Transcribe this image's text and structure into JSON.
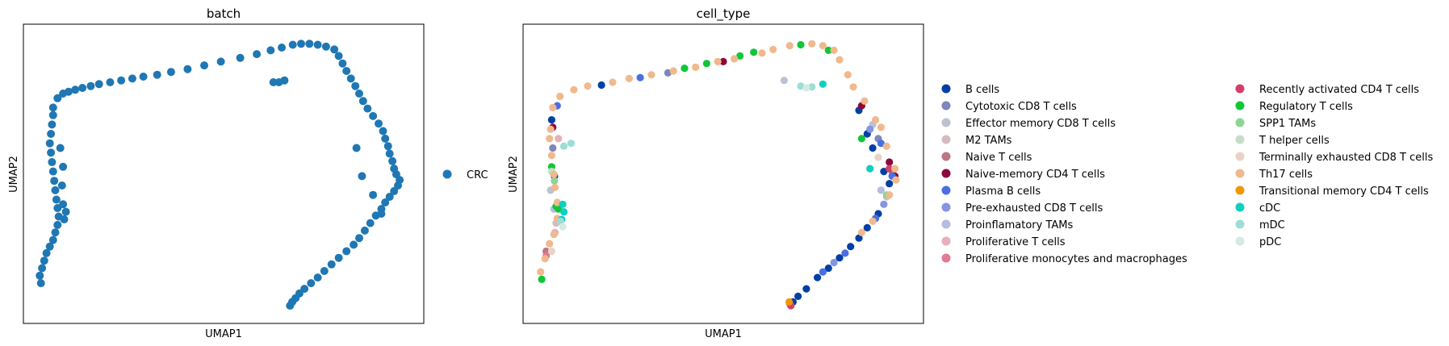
{
  "chart_data": [
    {
      "type": "scatter",
      "title": "batch",
      "xlabel": "UMAP1",
      "ylabel": "UMAP2",
      "grid": false,
      "ticks": false,
      "legend_position": "right",
      "series": [
        {
          "name": "CRC",
          "color": "#1f77b4",
          "points": [
            [
              0.42,
              1.63
            ],
            [
              0.5,
              1.73
            ],
            [
              0.6,
              1.78
            ],
            [
              0.7,
              1.8
            ],
            [
              0.82,
              1.82
            ],
            [
              0.95,
              1.84
            ],
            [
              1.1,
              1.86
            ],
            [
              1.25,
              1.88
            ],
            [
              1.45,
              1.9
            ],
            [
              1.65,
              1.92
            ],
            [
              1.85,
              1.94
            ],
            [
              2.05,
              1.96
            ],
            [
              2.3,
              1.98
            ],
            [
              2.55,
              2.01
            ],
            [
              2.85,
              2.04
            ],
            [
              3.15,
              2.08
            ],
            [
              3.45,
              2.12
            ],
            [
              3.8,
              2.16
            ],
            [
              4.1,
              2.2
            ],
            [
              4.35,
              2.24
            ],
            [
              4.55,
              2.27
            ],
            [
              4.75,
              2.3
            ],
            [
              4.9,
              2.31
            ],
            [
              5.05,
              2.31
            ],
            [
              5.2,
              2.3
            ],
            [
              5.35,
              2.28
            ],
            [
              5.5,
              2.25
            ],
            [
              5.58,
              2.18
            ],
            [
              5.65,
              2.1
            ],
            [
              5.72,
              2.02
            ],
            [
              5.8,
              1.94
            ],
            [
              5.88,
              1.86
            ],
            [
              5.95,
              1.78
            ],
            [
              6.02,
              1.7
            ],
            [
              6.1,
              1.62
            ],
            [
              6.2,
              1.54
            ],
            [
              6.3,
              1.46
            ],
            [
              6.38,
              1.38
            ],
            [
              6.42,
              1.3
            ],
            [
              6.47,
              1.22
            ],
            [
              6.5,
              1.14
            ],
            [
              6.55,
              1.06
            ],
            [
              6.58,
              0.98
            ],
            [
              6.62,
              0.92
            ],
            [
              6.68,
              0.86
            ],
            [
              6.65,
              0.8
            ],
            [
              6.58,
              0.74
            ],
            [
              6.5,
              0.68
            ],
            [
              6.42,
              0.62
            ],
            [
              6.35,
              0.55
            ],
            [
              6.25,
              0.48
            ],
            [
              6.15,
              0.4
            ],
            [
              6.05,
              0.32
            ],
            [
              5.95,
              0.24
            ],
            [
              5.85,
              0.17
            ],
            [
              5.72,
              0.1
            ],
            [
              5.58,
              0.03
            ],
            [
              5.45,
              -0.04
            ],
            [
              5.32,
              -0.11
            ],
            [
              5.2,
              -0.18
            ],
            [
              5.08,
              -0.24
            ],
            [
              4.96,
              -0.3
            ],
            [
              4.87,
              -0.35
            ],
            [
              4.8,
              -0.4
            ],
            [
              4.74,
              -0.44
            ],
            [
              4.7,
              -0.48
            ],
            [
              0.42,
              1.55
            ],
            [
              0.4,
              1.45
            ],
            [
              0.38,
              1.35
            ],
            [
              0.36,
              1.25
            ],
            [
              0.38,
              1.15
            ],
            [
              0.4,
              1.05
            ],
            [
              0.42,
              0.95
            ],
            [
              0.44,
              0.85
            ],
            [
              0.46,
              0.75
            ],
            [
              0.48,
              0.65
            ],
            [
              0.5,
              0.56
            ],
            [
              0.52,
              0.47
            ],
            [
              0.5,
              0.38
            ],
            [
              0.46,
              0.3
            ],
            [
              0.42,
              0.22
            ],
            [
              0.36,
              0.15
            ],
            [
              0.3,
              0.08
            ],
            [
              0.26,
              0.0
            ],
            [
              0.22,
              -0.08
            ],
            [
              0.18,
              -0.16
            ],
            [
              0.2,
              -0.24
            ],
            [
              0.6,
              0.6
            ],
            [
              0.65,
              0.52
            ],
            [
              0.62,
              0.44
            ],
            [
              0.55,
              1.2
            ],
            [
              0.6,
              1.0
            ],
            [
              0.58,
              0.8
            ],
            [
              4.4,
              1.9
            ],
            [
              4.6,
              1.92
            ],
            [
              4.5,
              1.9
            ],
            [
              5.9,
              1.2
            ],
            [
              6.0,
              0.9
            ],
            [
              6.2,
              0.7
            ],
            [
              6.35,
              0.5
            ]
          ]
        }
      ]
    },
    {
      "type": "scatter",
      "title": "cell_type",
      "xlabel": "UMAP1",
      "ylabel": "UMAP2",
      "grid": false,
      "ticks": false,
      "legend_position": "right, two columns",
      "series": [
        {
          "name": "B cells",
          "color": "#023fa5",
          "points": [
            [
              5.95,
              1.6
            ],
            [
              6.1,
              1.35
            ],
            [
              6.2,
              1.2
            ],
            [
              6.4,
              0.95
            ],
            [
              6.5,
              0.82
            ],
            [
              6.3,
              0.5
            ],
            [
              6.1,
              0.35
            ],
            [
              5.95,
              0.24
            ],
            [
              5.8,
              0.15
            ],
            [
              5.6,
              0.03
            ],
            [
              5.4,
              -0.08
            ],
            [
              5.2,
              -0.18
            ],
            [
              5.0,
              -0.3
            ],
            [
              4.85,
              -0.38
            ],
            [
              4.76,
              -0.44
            ],
            [
              0.4,
              1.5
            ],
            [
              0.45,
              0.9
            ],
            [
              1.3,
              1.87
            ]
          ]
        },
        {
          "name": "Cytotoxic CD8 T cells",
          "color": "#7d87b9",
          "points": [
            [
              0.42,
              1.2
            ],
            [
              6.3,
              1.3
            ],
            [
              2.5,
              2.0
            ]
          ]
        },
        {
          "name": "Effector memory CD8 T cells",
          "color": "#bec1d4",
          "points": [
            [
              0.38,
              0.75
            ],
            [
              6.2,
              1.45
            ],
            [
              4.6,
              1.92
            ]
          ]
        },
        {
          "name": "M2 TAMs",
          "color": "#d6bcc0",
          "points": [
            [
              0.48,
              0.4
            ],
            [
              6.45,
              0.68
            ]
          ]
        },
        {
          "name": "Naive T cells",
          "color": "#bb7784",
          "points": [
            [
              6.55,
              0.95
            ],
            [
              0.3,
              0.1
            ]
          ]
        },
        {
          "name": "Naive-memory CD4 T cells",
          "color": "#8e063b",
          "points": [
            [
              6.0,
              1.65
            ],
            [
              6.5,
              1.05
            ],
            [
              6.6,
              0.9
            ],
            [
              0.42,
              1.42
            ],
            [
              3.5,
              2.12
            ]
          ]
        },
        {
          "name": "Plasma B cells",
          "color": "#4a6fe3",
          "points": [
            [
              6.35,
              1.25
            ],
            [
              6.55,
              0.9
            ],
            [
              6.25,
              0.45
            ],
            [
              5.7,
              0.08
            ],
            [
              5.3,
              -0.12
            ],
            [
              0.5,
              1.65
            ],
            [
              2.0,
              1.95
            ]
          ]
        },
        {
          "name": "Pre-exhausted CD8 T cells",
          "color": "#8595e1",
          "points": [
            [
              6.15,
              1.4
            ],
            [
              6.4,
              0.6
            ],
            [
              5.5,
              -0.02
            ]
          ]
        },
        {
          "name": "Proinflamatory TAMs",
          "color": "#b5bbe3",
          "points": [
            [
              6.35,
              0.75
            ],
            [
              0.44,
              0.55
            ]
          ]
        },
        {
          "name": "Proliferative T cells",
          "color": "#e6afb9",
          "points": [
            [
              0.46,
              0.3
            ],
            [
              0.52,
              1.3
            ]
          ]
        },
        {
          "name": "Proliferative monocytes and macrophages",
          "color": "#e07b91",
          "points": [
            [
              4.7,
              -0.46
            ],
            [
              0.3,
              0.05
            ]
          ]
        },
        {
          "name": "Recently activated CD4 T cells",
          "color": "#d33f6a",
          "points": [
            [
              6.5,
              0.98
            ],
            [
              4.72,
              -0.48
            ]
          ]
        },
        {
          "name": "Regulatory T cells",
          "color": "#11c638",
          "points": [
            [
              0.48,
              0.58
            ],
            [
              0.52,
              0.55
            ],
            [
              0.4,
              1.0
            ],
            [
              3.2,
              2.1
            ],
            [
              3.8,
              2.18
            ],
            [
              4.05,
              2.22
            ],
            [
              4.9,
              2.3
            ],
            [
              5.4,
              2.24
            ],
            [
              6.0,
              1.3
            ],
            [
              0.22,
              -0.2
            ],
            [
              2.8,
              2.05
            ]
          ]
        },
        {
          "name": "SPP1 TAMs",
          "color": "#8dd593",
          "points": [
            [
              0.45,
              0.85
            ],
            [
              6.45,
              0.7
            ]
          ]
        },
        {
          "name": "T helper cells",
          "color": "#c6dec7",
          "points": [
            [
              0.4,
              0.95
            ]
          ]
        },
        {
          "name": "Terminally exhausted CD8 T cells",
          "color": "#ead3c6",
          "points": [
            [
              0.4,
              0.1
            ],
            [
              6.3,
              1.1
            ]
          ]
        },
        {
          "name": "Th17 cells",
          "color": "#f0b98d",
          "points": [
            [
              0.42,
              1.63
            ],
            [
              0.55,
              1.75
            ],
            [
              0.8,
              1.82
            ],
            [
              1.05,
              1.86
            ],
            [
              1.5,
              1.9
            ],
            [
              1.8,
              1.94
            ],
            [
              2.2,
              1.98
            ],
            [
              2.6,
              2.02
            ],
            [
              3.0,
              2.06
            ],
            [
              3.4,
              2.12
            ],
            [
              3.7,
              2.15
            ],
            [
              4.2,
              2.21
            ],
            [
              4.4,
              2.25
            ],
            [
              4.7,
              2.29
            ],
            [
              5.1,
              2.31
            ],
            [
              5.3,
              2.29
            ],
            [
              5.5,
              2.24
            ],
            [
              5.6,
              2.14
            ],
            [
              5.75,
              1.98
            ],
            [
              5.85,
              1.85
            ],
            [
              6.05,
              1.7
            ],
            [
              6.25,
              1.5
            ],
            [
              6.35,
              1.42
            ],
            [
              6.45,
              1.22
            ],
            [
              6.6,
              0.98
            ],
            [
              6.62,
              0.86
            ],
            [
              6.5,
              0.7
            ],
            [
              6.2,
              0.42
            ],
            [
              6.0,
              0.3
            ],
            [
              0.38,
              1.4
            ],
            [
              0.36,
              1.3
            ],
            [
              0.4,
              1.12
            ],
            [
              0.44,
              0.92
            ],
            [
              0.46,
              0.78
            ],
            [
              0.5,
              0.62
            ],
            [
              0.5,
              0.45
            ],
            [
              0.44,
              0.28
            ],
            [
              0.36,
              0.18
            ],
            [
              0.28,
              0.02
            ],
            [
              0.2,
              -0.12
            ]
          ]
        },
        {
          "name": "Transitional memory CD4 T cells",
          "color": "#ef9708",
          "points": [
            [
              4.69,
              -0.44
            ]
          ]
        },
        {
          "name": "cDC",
          "color": "#0fcfc0",
          "points": [
            [
              0.6,
              0.6
            ],
            [
              0.62,
              0.52
            ],
            [
              0.58,
              0.44
            ],
            [
              5.3,
              1.88
            ],
            [
              6.15,
              0.98
            ]
          ]
        },
        {
          "name": "mDC",
          "color": "#9cded6",
          "points": [
            [
              0.56,
              0.42
            ],
            [
              0.62,
              1.22
            ],
            [
              0.75,
              1.25
            ],
            [
              4.9,
              1.86
            ],
            [
              5.1,
              1.85
            ]
          ]
        },
        {
          "name": "pDC",
          "color": "#d5eae7",
          "points": [
            [
              0.6,
              0.36
            ],
            [
              5.0,
              1.84
            ]
          ]
        }
      ]
    }
  ]
}
